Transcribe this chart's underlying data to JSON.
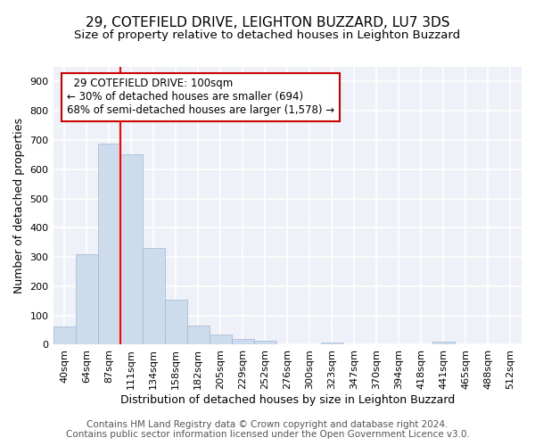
{
  "title_line1": "29, COTEFIELD DRIVE, LEIGHTON BUZZARD, LU7 3DS",
  "title_line2": "Size of property relative to detached houses in Leighton Buzzard",
  "xlabel": "Distribution of detached houses by size in Leighton Buzzard",
  "ylabel": "Number of detached properties",
  "annotation_line1": "  29 COTEFIELD DRIVE: 100sqm",
  "annotation_line2": "← 30% of detached houses are smaller (694)",
  "annotation_line3": "68% of semi-detached houses are larger (1,578) →",
  "footer_line1": "Contains HM Land Registry data © Crown copyright and database right 2024.",
  "footer_line2": "Contains public sector information licensed under the Open Government Licence v3.0.",
  "bin_labels": [
    "40sqm",
    "64sqm",
    "87sqm",
    "111sqm",
    "134sqm",
    "158sqm",
    "182sqm",
    "205sqm",
    "229sqm",
    "252sqm",
    "276sqm",
    "300sqm",
    "323sqm",
    "347sqm",
    "370sqm",
    "394sqm",
    "418sqm",
    "441sqm",
    "465sqm",
    "488sqm",
    "512sqm"
  ],
  "bar_values": [
    62,
    310,
    687,
    652,
    330,
    153,
    65,
    35,
    20,
    13,
    0,
    0,
    8,
    0,
    0,
    0,
    0,
    10,
    0,
    0,
    0
  ],
  "bar_color": "#ccdcec",
  "bar_edge_color": "#a0b8d0",
  "red_line_x": 3.0,
  "ylim": [
    0,
    950
  ],
  "yticks": [
    0,
    100,
    200,
    300,
    400,
    500,
    600,
    700,
    800,
    900
  ],
  "background_color": "#eef2f8",
  "grid_color": "#ffffff",
  "annotation_box_facecolor": "#ffffff",
  "annotation_box_edgecolor": "#cc0000",
  "title_fontsize": 11,
  "subtitle_fontsize": 9.5,
  "axis_label_fontsize": 9,
  "tick_fontsize": 8,
  "annotation_fontsize": 8.5,
  "footer_fontsize": 7.5
}
